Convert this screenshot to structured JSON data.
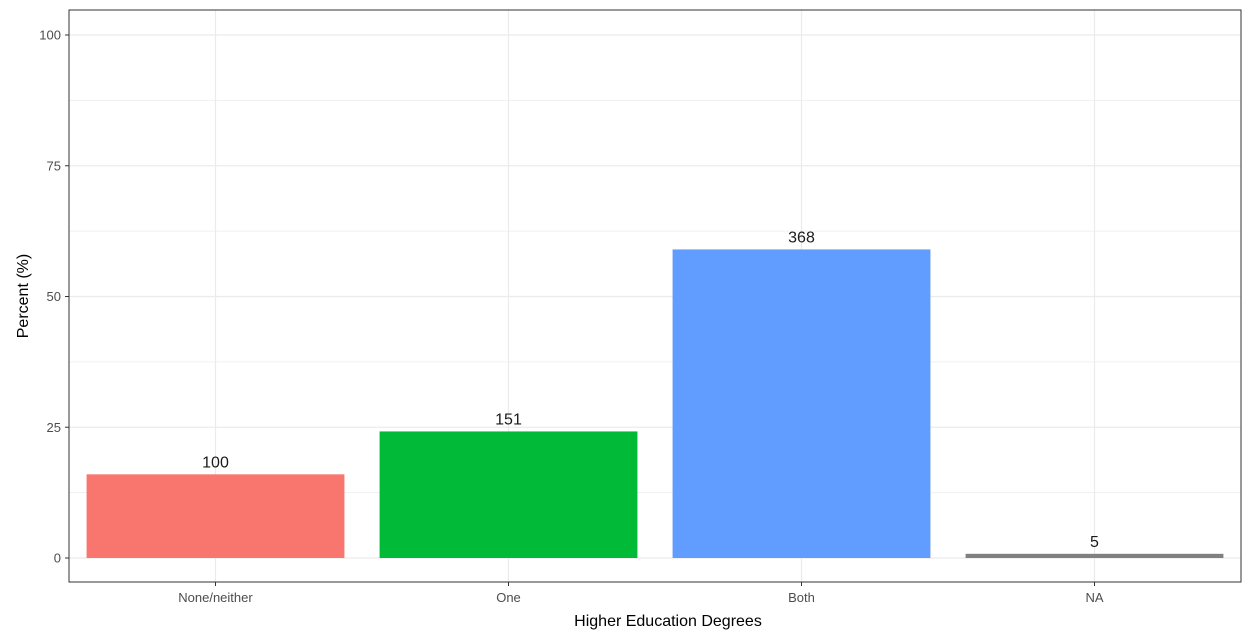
{
  "chart_data": {
    "type": "bar",
    "xlabel": "Higher Education Degrees",
    "ylabel": "Percent (%)",
    "ylim": [
      0,
      105
    ],
    "yticks": [
      0,
      25,
      50,
      75,
      100
    ],
    "grid": true,
    "categories": [
      "None/neither",
      "One",
      "Both",
      "NA"
    ],
    "values": [
      16.0,
      24.2,
      59.0,
      0.8
    ],
    "bar_labels": [
      "100",
      "151",
      "368",
      "5"
    ],
    "colors": [
      "#F8766D",
      "#00BA38",
      "#619CFF",
      "#808080"
    ]
  }
}
